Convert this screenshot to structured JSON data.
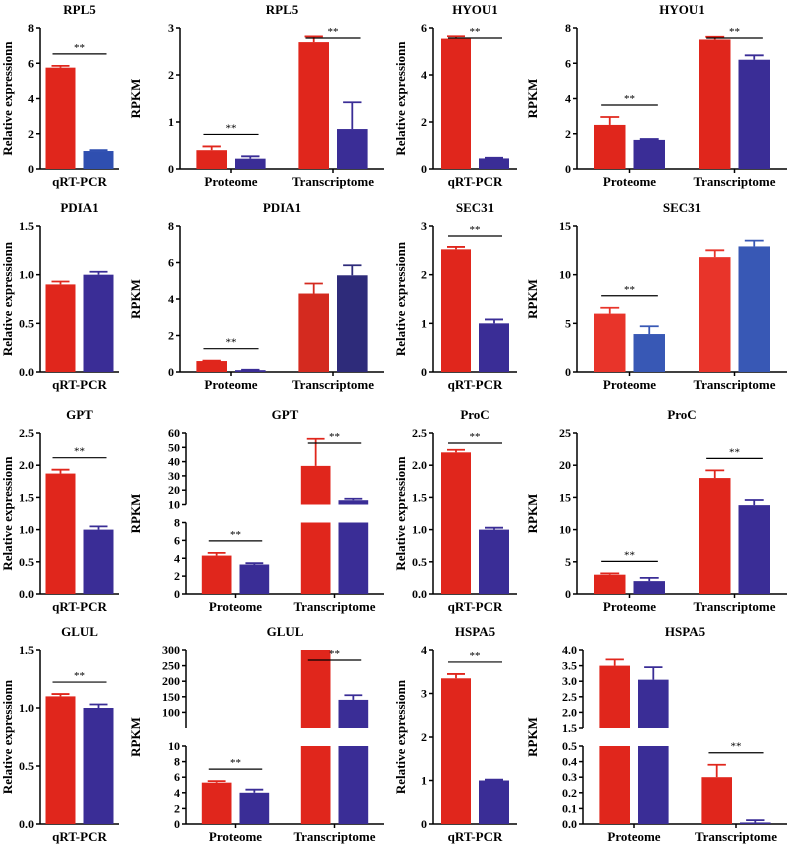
{
  "chart_data": [
    {
      "type": "bar",
      "title": "RPL5",
      "ylabel": "Relative expressionn",
      "ylim": [
        0,
        8
      ],
      "yticks": [
        0,
        2,
        4,
        6,
        8
      ],
      "groups": [
        {
          "label": "qRT-PCR",
          "bars": [
            {
              "value": 5.75,
              "err": 0.1,
              "color": "#e0261c"
            },
            {
              "value": 1.02,
              "err": 0.05,
              "color": "#2f4fb0"
            }
          ],
          "sig": "**"
        }
      ]
    },
    {
      "type": "bar",
      "title": "RPL5",
      "ylabel": "RPKM",
      "ylim": [
        0,
        3
      ],
      "yticks": [
        0,
        1,
        2,
        3
      ],
      "groups": [
        {
          "label": "Proteome",
          "bars": [
            {
              "value": 0.4,
              "err": 0.08,
              "color": "#e0261c"
            },
            {
              "value": 0.22,
              "err": 0.05,
              "color": "#3a2d96"
            }
          ],
          "sig": "**"
        },
        {
          "label": "Transcriptome",
          "bars": [
            {
              "value": 2.7,
              "err": 0.12,
              "color": "#e0261c"
            },
            {
              "value": 0.85,
              "err": 0.57,
              "color": "#3a2d96"
            }
          ],
          "sig": "**"
        }
      ]
    },
    {
      "type": "bar",
      "title": "HYOU1",
      "ylabel": "Relative expressionn",
      "ylim": [
        0,
        6
      ],
      "yticks": [
        0,
        2,
        4,
        6
      ],
      "groups": [
        {
          "label": "qRT-PCR",
          "bars": [
            {
              "value": 5.55,
              "err": 0.1,
              "color": "#e0261c"
            },
            {
              "value": 0.45,
              "err": 0.03,
              "color": "#3a2d96"
            }
          ],
          "sig": "**"
        }
      ]
    },
    {
      "type": "bar",
      "title": "HYOU1",
      "ylabel": "RPKM",
      "ylim": [
        0,
        8
      ],
      "yticks": [
        0,
        2,
        4,
        6,
        8
      ],
      "groups": [
        {
          "label": "Proteome",
          "bars": [
            {
              "value": 2.5,
              "err": 0.45,
              "color": "#e0261c"
            },
            {
              "value": 1.65,
              "err": 0.05,
              "color": "#3a2d96"
            }
          ],
          "sig": "**"
        },
        {
          "label": "Transcriptome",
          "bars": [
            {
              "value": 7.35,
              "err": 0.15,
              "color": "#e0261c"
            },
            {
              "value": 6.2,
              "err": 0.25,
              "color": "#3a2d96"
            }
          ],
          "sig": "**"
        }
      ]
    },
    {
      "type": "bar",
      "title": "PDIA1",
      "ylabel": "Relative expressionn",
      "ylim": [
        0,
        1.5
      ],
      "yticks": [
        0.0,
        0.5,
        1.0,
        1.5
      ],
      "ytick_labels": [
        "0.0",
        "0.5",
        "1.0",
        "1.5"
      ],
      "groups": [
        {
          "label": "qRT-PCR",
          "bars": [
            {
              "value": 0.9,
              "err": 0.03,
              "color": "#e0261c"
            },
            {
              "value": 1.0,
              "err": 0.03,
              "color": "#3a2d96"
            }
          ],
          "sig": ""
        }
      ]
    },
    {
      "type": "bar",
      "title": "PDIA1",
      "ylabel": "RPKM",
      "ylim": [
        0,
        8
      ],
      "yticks": [
        0,
        2,
        4,
        6,
        8
      ],
      "groups": [
        {
          "label": "Proteome",
          "bars": [
            {
              "value": 0.6,
              "err": 0.02,
              "color": "#e0261c"
            },
            {
              "value": 0.1,
              "err": 0.02,
              "color": "#3a2d96"
            }
          ],
          "sig": "**"
        },
        {
          "label": "Transcriptome",
          "bars": [
            {
              "value": 4.3,
              "err": 0.55,
              "color": "#d42a1f"
            },
            {
              "value": 5.3,
              "err": 0.55,
              "color": "#2e2b7a"
            }
          ],
          "sig": ""
        }
      ]
    },
    {
      "type": "bar",
      "title": "SEC31",
      "ylabel": "Relative expressionn",
      "ylim": [
        0,
        3
      ],
      "yticks": [
        0,
        1,
        2,
        3
      ],
      "groups": [
        {
          "label": "qRT-PCR",
          "bars": [
            {
              "value": 2.52,
              "err": 0.05,
              "color": "#e0261c"
            },
            {
              "value": 1.0,
              "err": 0.08,
              "color": "#3a2d96"
            }
          ],
          "sig": "**"
        }
      ]
    },
    {
      "type": "bar",
      "title": "SEC31",
      "ylabel": "RPKM",
      "ylim": [
        0,
        15
      ],
      "yticks": [
        0,
        5,
        10,
        15
      ],
      "groups": [
        {
          "label": "Proteome",
          "bars": [
            {
              "value": 6.0,
              "err": 0.6,
              "color": "#e8342a"
            },
            {
              "value": 3.9,
              "err": 0.8,
              "color": "#3858b5"
            }
          ],
          "sig": "**"
        },
        {
          "label": "Transcriptome",
          "bars": [
            {
              "value": 11.8,
              "err": 0.7,
              "color": "#e8342a"
            },
            {
              "value": 12.9,
              "err": 0.6,
              "color": "#3858b5"
            }
          ],
          "sig": ""
        }
      ]
    },
    {
      "type": "bar",
      "title": "GPT",
      "ylabel": "Relative expressionn",
      "ylim": [
        0,
        2.5
      ],
      "yticks": [
        0,
        0.5,
        1.0,
        1.5,
        2.0,
        2.5
      ],
      "ytick_labels": [
        "0.0",
        "0.5",
        "1.0",
        "1.5",
        "2.0",
        "2.5"
      ],
      "groups": [
        {
          "label": "qRT-PCR",
          "bars": [
            {
              "value": 1.87,
              "err": 0.06,
              "color": "#e0261c"
            },
            {
              "value": 1.0,
              "err": 0.05,
              "color": "#3a2d96"
            }
          ],
          "sig": "**"
        }
      ]
    },
    {
      "type": "bar",
      "title": "GPT",
      "ylabel": "RPKM",
      "broken_axis": [
        {
          "ylim": [
            0,
            8
          ],
          "yticks": [
            0,
            2,
            4,
            6,
            8
          ]
        },
        {
          "ylim": [
            10,
            60
          ],
          "yticks": [
            10,
            20,
            30,
            40,
            50,
            60
          ]
        }
      ],
      "groups": [
        {
          "label": "Proteome",
          "bars": [
            {
              "value": 4.3,
              "err": 0.3,
              "color": "#e0261c"
            },
            {
              "value": 3.3,
              "err": 0.15,
              "color": "#3a2d96"
            }
          ],
          "sig": "**"
        },
        {
          "label": "Transcriptome",
          "bars": [
            {
              "value": 37,
              "err": 19,
              "color": "#e0261c"
            },
            {
              "value": 13,
              "err": 1,
              "color": "#3a2d96"
            }
          ],
          "sig": "**"
        }
      ]
    },
    {
      "type": "bar",
      "title": "ProC",
      "ylabel": "Relative expressionn",
      "ylim": [
        0,
        2.5
      ],
      "yticks": [
        0,
        0.5,
        1.0,
        1.5,
        2.0,
        2.5
      ],
      "ytick_labels": [
        "0.0",
        "0.5",
        "1.0",
        "1.5",
        "2.0",
        "2.5"
      ],
      "groups": [
        {
          "label": "qRT-PCR",
          "bars": [
            {
              "value": 2.2,
              "err": 0.04,
              "color": "#e0261c"
            },
            {
              "value": 1.0,
              "err": 0.03,
              "color": "#3a2d96"
            }
          ],
          "sig": "**"
        }
      ]
    },
    {
      "type": "bar",
      "title": "ProC",
      "ylabel": "RPKM",
      "ylim": [
        0,
        25
      ],
      "yticks": [
        0,
        5,
        10,
        15,
        20,
        25
      ],
      "groups": [
        {
          "label": "Proteome",
          "bars": [
            {
              "value": 3.0,
              "err": 0.2,
              "color": "#e0261c"
            },
            {
              "value": 2.0,
              "err": 0.5,
              "color": "#3a2d96"
            }
          ],
          "sig": "**"
        },
        {
          "label": "Transcriptome",
          "bars": [
            {
              "value": 18.0,
              "err": 1.2,
              "color": "#e0261c"
            },
            {
              "value": 13.8,
              "err": 0.8,
              "color": "#3a2d96"
            }
          ],
          "sig": "**"
        }
      ]
    },
    {
      "type": "bar",
      "title": "GLUL",
      "ylabel": "Relative expressionn",
      "ylim": [
        0,
        1.5
      ],
      "yticks": [
        0,
        0.5,
        1.0,
        1.5
      ],
      "ytick_labels": [
        "0.0",
        "0.5",
        "1.0",
        "1.5"
      ],
      "groups": [
        {
          "label": "qRT-PCR",
          "bars": [
            {
              "value": 1.1,
              "err": 0.02,
              "color": "#e0261c"
            },
            {
              "value": 1.0,
              "err": 0.03,
              "color": "#3a2d96"
            }
          ],
          "sig": "**"
        }
      ]
    },
    {
      "type": "bar",
      "title": "GLUL",
      "ylabel": "RPKM",
      "broken_axis": [
        {
          "ylim": [
            0,
            10
          ],
          "yticks": [
            0,
            2,
            4,
            6,
            8,
            10
          ]
        },
        {
          "ylim": [
            50,
            300
          ],
          "yticks": [
            100,
            150,
            200,
            250,
            300
          ]
        }
      ],
      "groups": [
        {
          "label": "Proteome",
          "bars": [
            {
              "value": 5.3,
              "err": 0.2,
              "color": "#e0261c"
            },
            {
              "value": 4.0,
              "err": 0.4,
              "color": "#3a2d96"
            }
          ],
          "sig": "**"
        },
        {
          "label": "Transcriptome",
          "bars": [
            {
              "value": 300,
              "err": 0,
              "color": "#e0261c"
            },
            {
              "value": 140,
              "err": 15,
              "color": "#3a2d96"
            }
          ],
          "sig": "**"
        }
      ]
    },
    {
      "type": "bar",
      "title": "HSPA5",
      "ylabel": "Relative expressionn",
      "ylim": [
        0,
        4
      ],
      "yticks": [
        0,
        1,
        2,
        3,
        4
      ],
      "groups": [
        {
          "label": "qRT-PCR",
          "bars": [
            {
              "value": 3.35,
              "err": 0.1,
              "color": "#e0261c"
            },
            {
              "value": 1.0,
              "err": 0.02,
              "color": "#3a2d96"
            }
          ],
          "sig": "**"
        }
      ]
    },
    {
      "type": "bar",
      "title": "HSPA5",
      "ylabel": "RPKM",
      "broken_axis": [
        {
          "ylim": [
            0,
            0.5
          ],
          "yticks": [
            0,
            0.1,
            0.2,
            0.3,
            0.4,
            0.5
          ],
          "ytick_labels": [
            "0.0",
            "0.1",
            "0.2",
            "0.3",
            "0.4",
            "0.5"
          ]
        },
        {
          "ylim": [
            1.5,
            4.0
          ],
          "yticks": [
            1.5,
            2.0,
            2.5,
            3.0,
            3.5,
            4.0
          ],
          "ytick_labels": [
            "1.5",
            "2.0",
            "2.5",
            "3.0",
            "3.5",
            "4.0"
          ]
        }
      ],
      "groups": [
        {
          "label": "Proteome",
          "bars": [
            {
              "value": 3.5,
              "err": 0.2,
              "color": "#e0261c"
            },
            {
              "value": 3.05,
              "err": 0.4,
              "color": "#3a2d96"
            }
          ],
          "sig": ""
        },
        {
          "label": "Transcriptome",
          "bars": [
            {
              "value": 0.3,
              "err": 0.08,
              "color": "#e0261c"
            },
            {
              "value": 0.01,
              "err": 0.015,
              "color": "#3a2d96"
            }
          ],
          "sig": "**"
        }
      ]
    }
  ]
}
